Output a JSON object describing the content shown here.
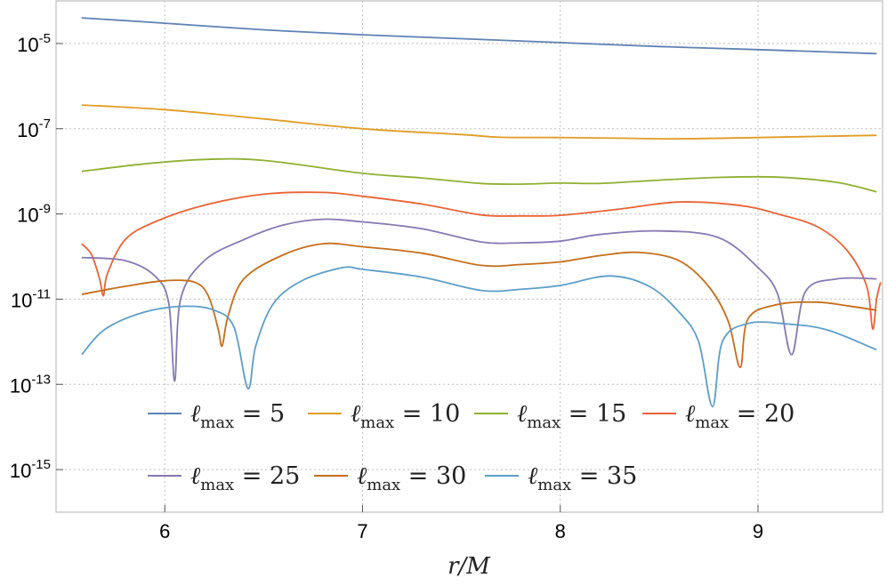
{
  "chart_data": {
    "type": "line",
    "xlabel": "r/M",
    "ylabel": "",
    "xscale": "linear",
    "yscale": "log",
    "xlim": [
      5.45,
      9.63
    ],
    "ylim": [
      1e-16,
      0.0001
    ],
    "xticks": [
      6,
      7,
      8,
      9
    ],
    "yticks": [
      {
        "value": 1e-05,
        "mantissa": "10",
        "exp": "-5"
      },
      {
        "value": 1e-07,
        "mantissa": "10",
        "exp": "-7"
      },
      {
        "value": 1e-09,
        "mantissa": "10",
        "exp": "-9"
      },
      {
        "value": 1e-11,
        "mantissa": "10",
        "exp": "-11"
      },
      {
        "value": 1e-13,
        "mantissa": "10",
        "exp": "-13"
      },
      {
        "value": 1e-15,
        "mantissa": "10",
        "exp": "-15"
      }
    ],
    "grid": true,
    "legend_position": "inside-bottom",
    "series": [
      {
        "name": "ℓmax = 5",
        "label_base": "ℓ",
        "label_sub": "max",
        "label_rest": " = 5",
        "color": "#5e81b5",
        "points": [
          [
            5.58,
            4e-05
          ],
          [
            6.0,
            3e-05
          ],
          [
            6.5,
            2.1e-05
          ],
          [
            7.0,
            1.6e-05
          ],
          [
            7.5,
            1.3e-05
          ],
          [
            8.0,
            1.05e-05
          ],
          [
            8.5,
            8.5e-06
          ],
          [
            9.0,
            7.2e-06
          ],
          [
            9.6,
            5.8e-06
          ]
        ]
      },
      {
        "name": "ℓmax = 10",
        "label_base": "ℓ",
        "label_sub": "max",
        "label_rest": " = 10",
        "color": "#e19c24",
        "points": [
          [
            5.58,
            3.6e-07
          ],
          [
            6.0,
            2.8e-07
          ],
          [
            6.5,
            1.7e-07
          ],
          [
            7.0,
            1e-07
          ],
          [
            7.5,
            7.3e-08
          ],
          [
            7.7,
            6.3e-08
          ],
          [
            8.0,
            6.2e-08
          ],
          [
            8.3,
            6e-08
          ],
          [
            8.6,
            5.8e-08
          ],
          [
            9.0,
            6.2e-08
          ],
          [
            9.3,
            6.6e-08
          ],
          [
            9.6,
            7e-08
          ]
        ]
      },
      {
        "name": "ℓmax = 15",
        "label_base": "ℓ",
        "label_sub": "max",
        "label_rest": " = 15",
        "color": "#8fb032",
        "points": [
          [
            5.58,
            1e-08
          ],
          [
            5.9,
            1.5e-08
          ],
          [
            6.2,
            1.9e-08
          ],
          [
            6.5,
            1.8e-08
          ],
          [
            7.0,
            9e-09
          ],
          [
            7.3,
            7e-09
          ],
          [
            7.6,
            5.2e-09
          ],
          [
            7.8,
            5e-09
          ],
          [
            8.0,
            5.3e-09
          ],
          [
            8.2,
            5.2e-09
          ],
          [
            8.5,
            6.2e-09
          ],
          [
            8.8,
            7.2e-09
          ],
          [
            9.1,
            7.3e-09
          ],
          [
            9.4,
            5.5e-09
          ],
          [
            9.6,
            3.3e-09
          ]
        ]
      },
      {
        "name": "ℓmax = 20",
        "label_base": "ℓ",
        "label_sub": "max",
        "label_rest": " = 20",
        "color": "#eb6235",
        "points": [
          [
            5.58,
            2e-10
          ],
          [
            5.63,
            1.1e-10
          ],
          [
            5.67,
            3e-11
          ],
          [
            5.69,
            1.2e-11
          ],
          [
            5.71,
            4e-11
          ],
          [
            5.8,
            2.5e-10
          ],
          [
            5.95,
            6.5e-10
          ],
          [
            6.2,
            1.6e-09
          ],
          [
            6.5,
            2.9e-09
          ],
          [
            6.8,
            3.2e-09
          ],
          [
            7.0,
            2.6e-09
          ],
          [
            7.3,
            1.7e-09
          ],
          [
            7.6,
            9.5e-10
          ],
          [
            7.8,
            9e-10
          ],
          [
            8.0,
            9.3e-10
          ],
          [
            8.3,
            1.3e-09
          ],
          [
            8.6,
            1.9e-09
          ],
          [
            8.9,
            1.6e-09
          ],
          [
            9.1,
            1e-09
          ],
          [
            9.3,
            5e-10
          ],
          [
            9.45,
            1.4e-10
          ],
          [
            9.55,
            2e-11
          ],
          [
            9.58,
            2e-12
          ],
          [
            9.6,
            1e-11
          ],
          [
            9.62,
            2.5e-11
          ]
        ]
      },
      {
        "name": "ℓmax = 25",
        "label_base": "ℓ",
        "label_sub": "max",
        "label_rest": " = 25",
        "color": "#8778b3",
        "points": [
          [
            5.58,
            9.5e-11
          ],
          [
            5.8,
            8e-11
          ],
          [
            5.95,
            3.5e-11
          ],
          [
            6.02,
            8e-12
          ],
          [
            6.05,
            1.2e-13
          ],
          [
            6.08,
            1e-11
          ],
          [
            6.2,
            8e-11
          ],
          [
            6.4,
            2.5e-10
          ],
          [
            6.6,
            5.5e-10
          ],
          [
            6.8,
            7.5e-10
          ],
          [
            7.0,
            6.5e-10
          ],
          [
            7.3,
            4.5e-10
          ],
          [
            7.6,
            2.2e-10
          ],
          [
            7.8,
            2.1e-10
          ],
          [
            8.0,
            2.3e-10
          ],
          [
            8.2,
            3.3e-10
          ],
          [
            8.5,
            4e-10
          ],
          [
            8.8,
            2.8e-10
          ],
          [
            9.0,
            5.5e-11
          ],
          [
            9.1,
            1.3e-11
          ],
          [
            9.17,
            5e-13
          ],
          [
            9.24,
            1.5e-11
          ],
          [
            9.4,
            3e-11
          ],
          [
            9.6,
            3e-11
          ]
        ]
      },
      {
        "name": "ℓmax = 30",
        "label_base": "ℓ",
        "label_sub": "max",
        "label_rest": " = 30",
        "color": "#c56e1a",
        "points": [
          [
            5.58,
            1.3e-11
          ],
          [
            5.8,
            2e-11
          ],
          [
            6.0,
            2.7e-11
          ],
          [
            6.15,
            2.5e-11
          ],
          [
            6.22,
            1.2e-11
          ],
          [
            6.27,
            2e-12
          ],
          [
            6.29,
            8e-13
          ],
          [
            6.32,
            4e-12
          ],
          [
            6.4,
            3e-11
          ],
          [
            6.6,
            1.1e-10
          ],
          [
            6.8,
            2e-10
          ],
          [
            7.0,
            1.7e-10
          ],
          [
            7.3,
            1.2e-10
          ],
          [
            7.6,
            6.2e-11
          ],
          [
            7.8,
            6.5e-11
          ],
          [
            8.0,
            7.5e-11
          ],
          [
            8.2,
            1.05e-10
          ],
          [
            8.4,
            1.25e-10
          ],
          [
            8.6,
            8e-11
          ],
          [
            8.75,
            2e-11
          ],
          [
            8.85,
            3e-12
          ],
          [
            8.91,
            2.5e-13
          ],
          [
            8.95,
            3.5e-12
          ],
          [
            9.1,
            7.5e-12
          ],
          [
            9.3,
            8.5e-12
          ],
          [
            9.45,
            7e-12
          ],
          [
            9.6,
            5.5e-12
          ]
        ]
      },
      {
        "name": "ℓmax = 35",
        "label_base": "ℓ",
        "label_sub": "max",
        "label_rest": " = 35",
        "color": "#5d9ec7",
        "points": [
          [
            5.58,
            5e-13
          ],
          [
            5.7,
            2e-12
          ],
          [
            5.9,
            5e-12
          ],
          [
            6.1,
            6.8e-12
          ],
          [
            6.25,
            5.5e-12
          ],
          [
            6.35,
            2.2e-12
          ],
          [
            6.42,
            8e-14
          ],
          [
            6.46,
            8e-13
          ],
          [
            6.55,
            8e-12
          ],
          [
            6.7,
            2.8e-11
          ],
          [
            6.9,
            5.5e-11
          ],
          [
            7.0,
            5e-11
          ],
          [
            7.3,
            3.3e-11
          ],
          [
            7.6,
            1.6e-11
          ],
          [
            7.8,
            1.7e-11
          ],
          [
            8.0,
            2.1e-11
          ],
          [
            8.25,
            3.5e-11
          ],
          [
            8.45,
            2e-11
          ],
          [
            8.6,
            5e-12
          ],
          [
            8.7,
            1e-12
          ],
          [
            8.77,
            3e-14
          ],
          [
            8.82,
            1e-12
          ],
          [
            8.95,
            2.7e-12
          ],
          [
            9.15,
            2.6e-12
          ],
          [
            9.35,
            1.9e-12
          ],
          [
            9.6,
            6.5e-13
          ]
        ]
      }
    ]
  }
}
